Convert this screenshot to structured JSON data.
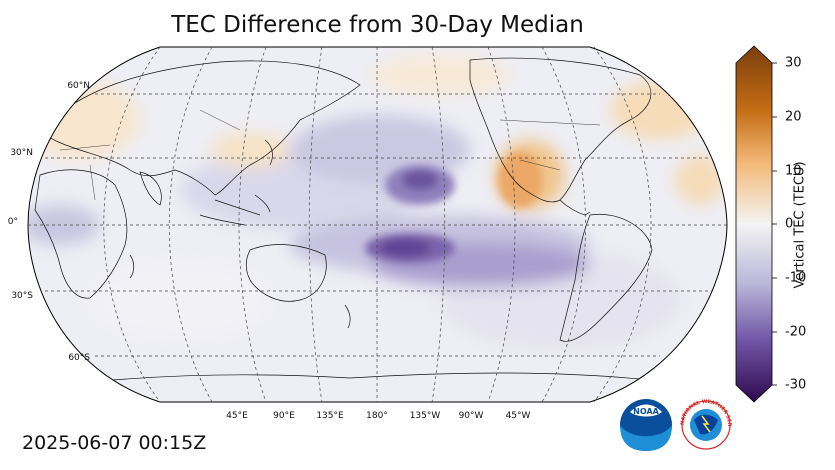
{
  "title": "TEC Difference from 30-Day Median",
  "timestamp": "2025-06-07 00:15Z",
  "colorbar": {
    "label": "Vertical TEC (TECU)",
    "ticks": [
      "30",
      "20",
      "10",
      "0",
      "-10",
      "-20",
      "-30"
    ],
    "range": [
      -30,
      30
    ],
    "colors": {
      "max": "#7a3f0c",
      "high": "#d8821c",
      "mid_high": "#f5c98a",
      "zero": "#f4f4f4",
      "mid_low": "#b6b3d6",
      "low": "#6a4f9f",
      "min": "#2e0a4f"
    }
  },
  "map": {
    "projection": "Robinson, central longitude 180°",
    "lat_labels": [
      "60°N",
      "30°N",
      "0°",
      "30°S",
      "60°S"
    ],
    "lon_labels": [
      "45°E",
      "90°E",
      "135°E",
      "180°",
      "135°W",
      "90°W",
      "45°W"
    ]
  },
  "logos": {
    "noaa": "NOAA",
    "nws": "NATIONAL WEATHER SERVICE"
  }
}
